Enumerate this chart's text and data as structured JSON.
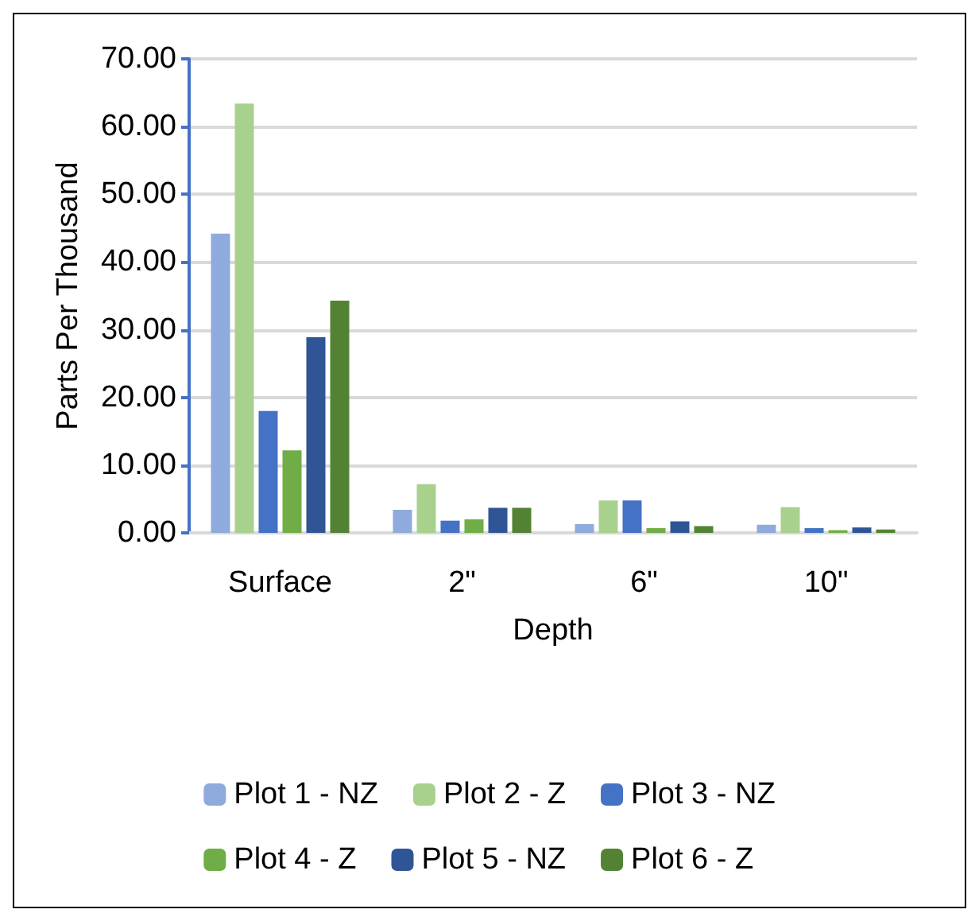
{
  "chart_data": {
    "type": "bar",
    "xlabel": "Depth",
    "ylabel": "Parts Per Thousand",
    "categories": [
      "Surface",
      "2\"",
      "6\"",
      "10\""
    ],
    "series": [
      {
        "name": "Plot 1 - NZ",
        "color": "#8faadc",
        "values": [
          44.2,
          3.4,
          1.3,
          1.2
        ]
      },
      {
        "name": "Plot 2 - Z",
        "color": "#a9d18e",
        "values": [
          63.4,
          7.2,
          4.8,
          3.8
        ]
      },
      {
        "name": "Plot 3 - NZ",
        "color": "#4472c4",
        "values": [
          18,
          1.8,
          4.8,
          0.7
        ]
      },
      {
        "name": "Plot 4 - Z",
        "color": "#70ad47",
        "values": [
          12.2,
          2.0,
          0.7,
          0.4
        ]
      },
      {
        "name": "Plot 5 - NZ",
        "color": "#2f5597",
        "values": [
          28.9,
          3.7,
          1.7,
          0.8
        ]
      },
      {
        "name": "Plot 6 - Z",
        "color": "#548235",
        "values": [
          34.3,
          3.7,
          1.0,
          0.5
        ]
      }
    ],
    "ylim": [
      0,
      70
    ],
    "yticks": [
      {
        "value": 0,
        "label": "0.00"
      },
      {
        "value": 10,
        "label": "10.00"
      },
      {
        "value": 20,
        "label": "20.00"
      },
      {
        "value": 30,
        "label": "30.00"
      },
      {
        "value": 40,
        "label": "40.00"
      },
      {
        "value": 50,
        "label": "50.00"
      },
      {
        "value": 60,
        "label": "60.00"
      },
      {
        "value": 70,
        "label": "70.00"
      }
    ],
    "grid": "y",
    "legend": "bottom"
  }
}
